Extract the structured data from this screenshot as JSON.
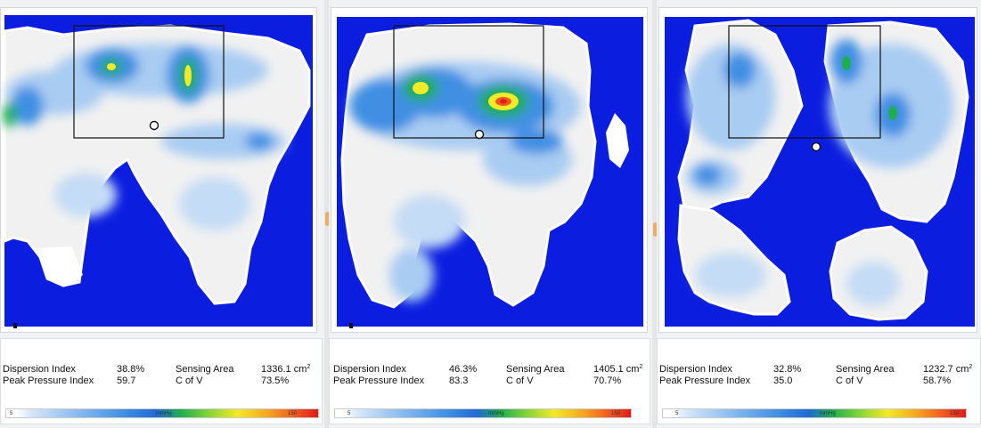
{
  "colors": {
    "background_blue": "#0b1ee0",
    "scale_low": "#ffffff",
    "scale_mid": "#1fae4f",
    "scale_high": "#e11a1a"
  },
  "panels": [
    {
      "dispersion_label": "Dispersion Index",
      "dispersion_value": "38.8%",
      "sensing_label": "Sensing Area",
      "sensing_value": "1336.1 cm",
      "sensing_unit_sup": "2",
      "peak_label": "Peak Pressure Index",
      "peak_value": "59.7",
      "cofv_label": "C of V",
      "cofv_value": "73.5%",
      "scale_min": "5",
      "scale_unit": "mmHg",
      "scale_max": "150"
    },
    {
      "dispersion_label": "Dispersion Index",
      "dispersion_value": "46.3%",
      "sensing_label": "Sensing Area",
      "sensing_value": "1405.1 cm",
      "sensing_unit_sup": "2",
      "peak_label": "Peak Pressure Index",
      "peak_value": "83.3",
      "cofv_label": "C of V",
      "cofv_value": "70.7%",
      "scale_min": "5",
      "scale_unit": "mmHg",
      "scale_max": "150"
    },
    {
      "dispersion_label": "Dispersion Index",
      "dispersion_value": "32.8%",
      "sensing_label": "Sensing Area",
      "sensing_value": "1232.7 cm",
      "sensing_unit_sup": "2",
      "peak_label": "Peak Pressure Index",
      "peak_value": "35.0",
      "cofv_label": "C of V",
      "cofv_value": "58.7%",
      "scale_min": "5",
      "scale_unit": "mmHg",
      "scale_max": "150"
    }
  ]
}
